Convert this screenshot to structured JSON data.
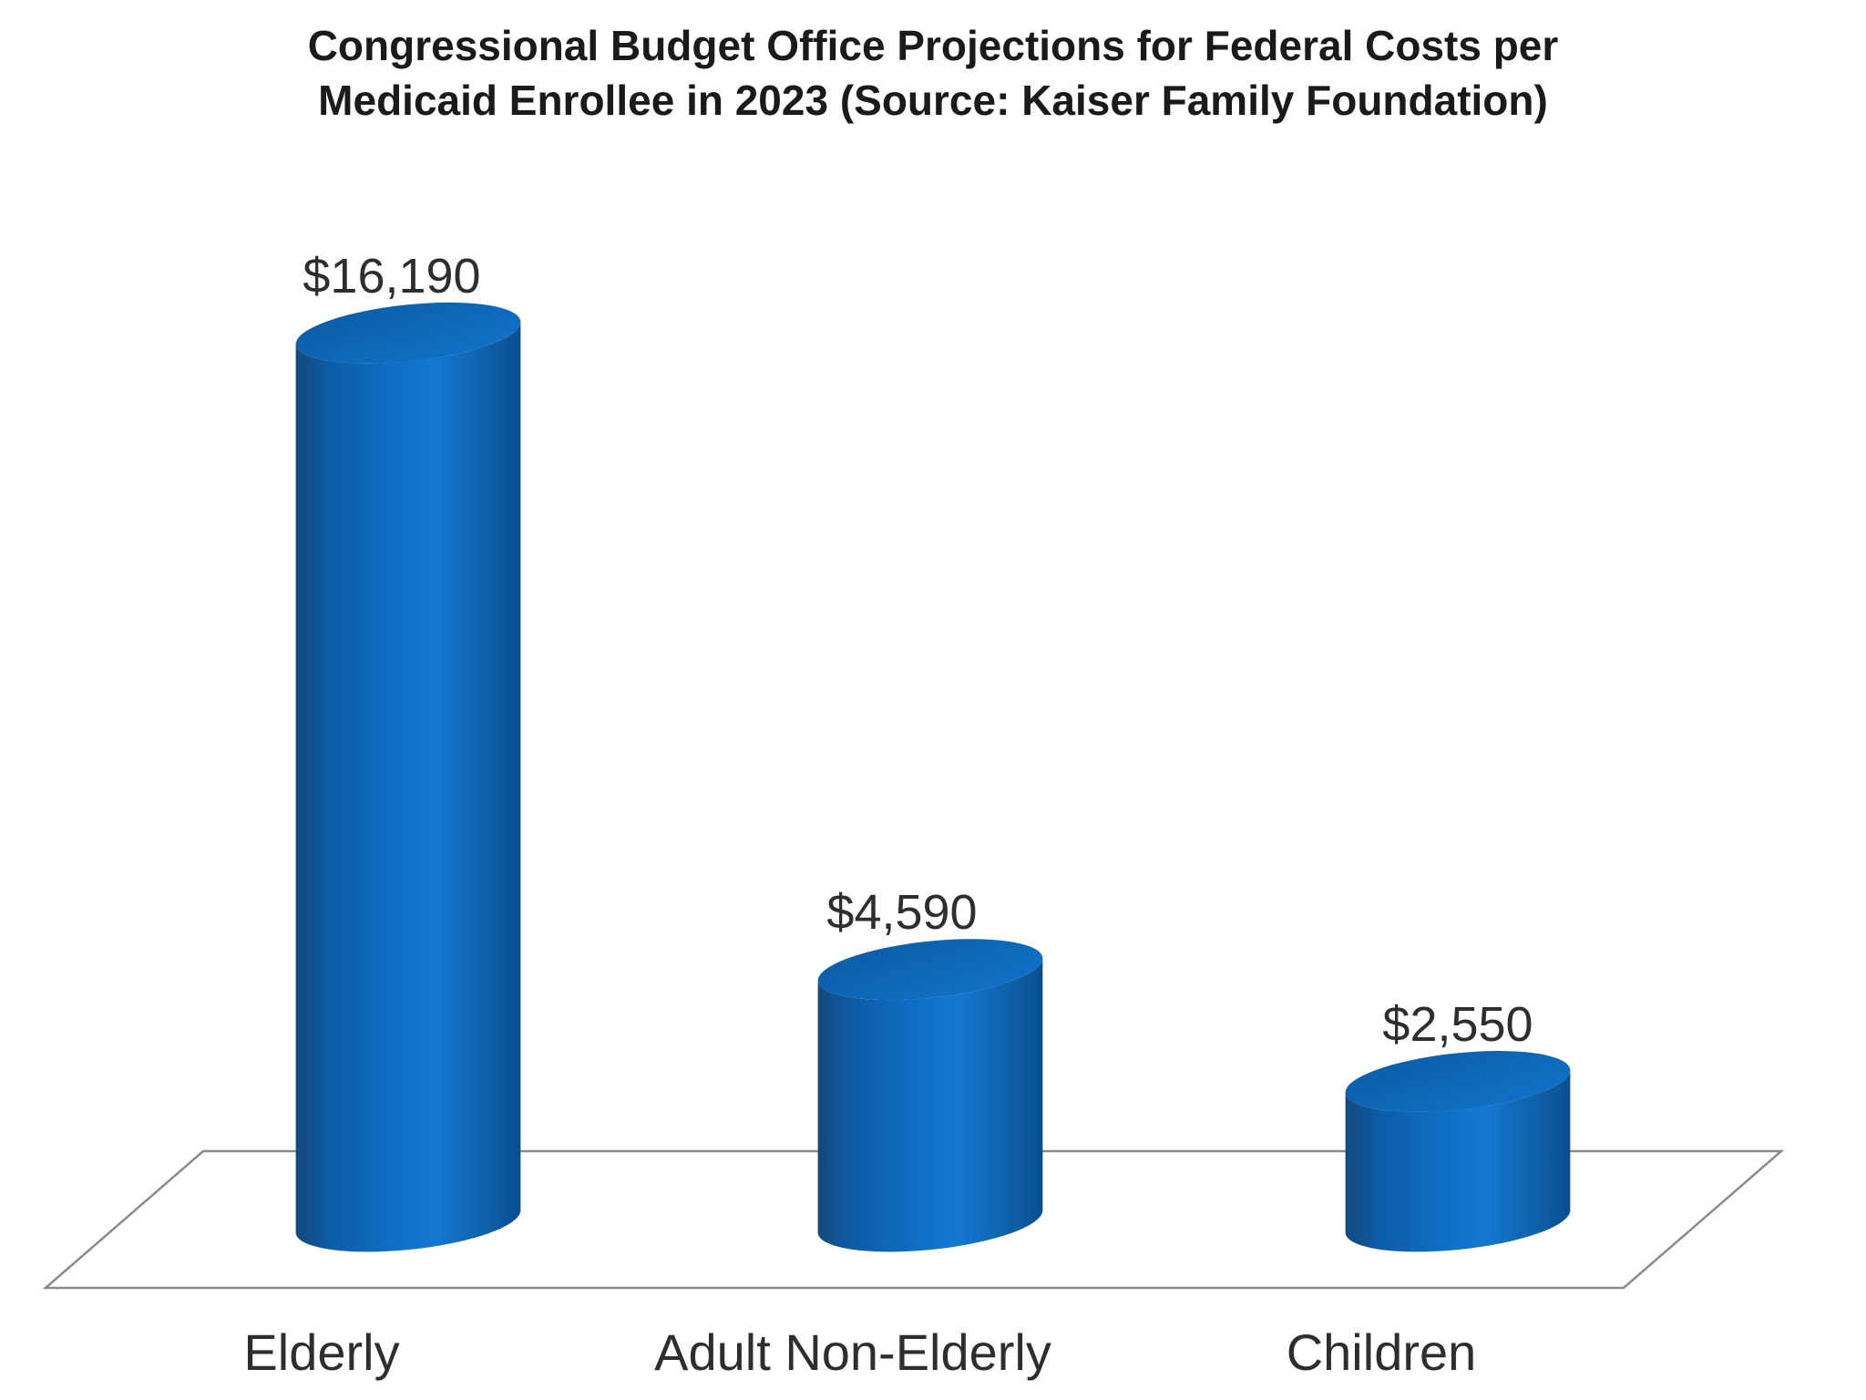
{
  "title": {
    "line1": "Congressional Budget Office Projections for Federal Costs per",
    "line2": "Medicaid Enrollee in 2023 (Source: Kaiser Family Foundation)"
  },
  "chart_data": {
    "type": "bar",
    "variant": "3d-cylinder",
    "title": "Congressional Budget Office Projections for Federal Costs per Medicaid Enrollee in 2023 (Source: Kaiser Family Foundation)",
    "categories": [
      "Elderly",
      "Adult Non-Elderly",
      "Children"
    ],
    "values": [
      16190,
      4590,
      2550
    ],
    "value_labels": [
      "$16,190",
      "$4,590",
      "$2,550"
    ],
    "xlabel": "",
    "ylabel": "",
    "ylim": [
      0,
      17000
    ],
    "gridlines": false,
    "legend": false,
    "background": "#FFFFFF",
    "title_color": "#1A1A1A",
    "text_color": "#2E2E2E",
    "floor_stroke": "#8A8A8A",
    "bar_color": "#0E70C5",
    "body_gradient": [
      [
        "0%",
        "#16497C"
      ],
      [
        "16%",
        "#0D5CA8"
      ],
      [
        "45%",
        "#0E70C5"
      ],
      [
        "62%",
        "#1478D2"
      ],
      [
        "80%",
        "#0F66B1"
      ],
      [
        "100%",
        "#0B4E90"
      ]
    ],
    "top_gradient": [
      [
        "0%",
        "#0A5CA5"
      ],
      [
        "100%",
        "#1273C9"
      ]
    ]
  }
}
